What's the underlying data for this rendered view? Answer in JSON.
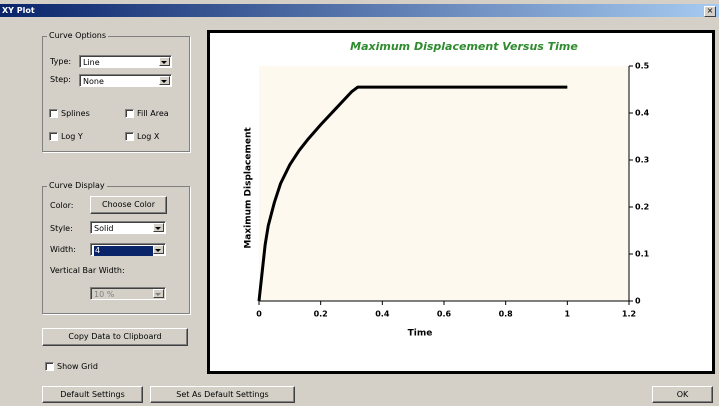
{
  "window": {
    "title": "XY Plot"
  },
  "curve_options": {
    "title": "Curve Options",
    "type_label": "Type:",
    "type_value": "Line",
    "step_label": "Step:",
    "step_value": "None",
    "checkboxes": [
      "Splines",
      "Fill Area",
      "Log Y",
      "Log X"
    ]
  },
  "curve_display": {
    "title": "Curve Display",
    "color_label": "Color:",
    "color_button": "Choose Color",
    "style_label": "Style:",
    "style_value": "Solid",
    "width_label": "Width:",
    "width_value": "4",
    "bar_width_label": "Vertical Bar Width:",
    "bar_width_value": "10 %"
  },
  "buttons": {
    "copy": "Copy Data to Clipboard",
    "default": "Default Settings",
    "set_default": "Set As Default Settings",
    "ok": "OK"
  },
  "show_grid": "Show Grid",
  "chart_data": {
    "type": "line",
    "title": "Maximum Displacement Versus Time",
    "x_label": "Time",
    "y_label": "Maximum Displacement",
    "x": [
      0,
      0.01,
      0.02,
      0.03,
      0.05,
      0.07,
      0.1,
      0.13,
      0.16,
      0.2,
      0.25,
      0.3,
      0.32,
      0.4,
      0.6,
      0.8,
      1.0
    ],
    "values": [
      0,
      0.06,
      0.12,
      0.16,
      0.21,
      0.25,
      0.29,
      0.32,
      0.345,
      0.375,
      0.41,
      0.445,
      0.455,
      0.455,
      0.455,
      0.455,
      0.455
    ],
    "color": "#000000",
    "xlim": [
      0,
      1.2
    ],
    "xticks": [
      0,
      0.2,
      0.4,
      0.6,
      0.8,
      1.0,
      1.2
    ],
    "ylim": [
      0,
      0.5
    ],
    "yticks": [
      0,
      0.1,
      0.2,
      0.3,
      0.4,
      0.5
    ]
  }
}
